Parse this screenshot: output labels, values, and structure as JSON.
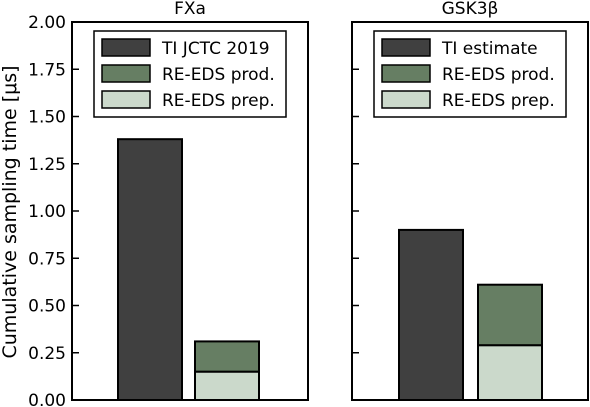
{
  "chart_data": [
    {
      "type": "bar",
      "stacked": true,
      "title": "FXa",
      "ylabel": "Cumulative sampling time [μs]",
      "ylim": [
        0,
        2.0
      ],
      "yticks": [
        "0.00",
        "0.25",
        "0.50",
        "0.75",
        "1.00",
        "1.25",
        "1.50",
        "1.75",
        "2.00"
      ],
      "legend_position": "upper-center",
      "bars": [
        {
          "segments": [
            {
              "series": "TI JCTC 2019",
              "value": 1.38
            }
          ]
        },
        {
          "segments": [
            {
              "series": "RE-EDS prep.",
              "value": 0.15
            },
            {
              "series": "RE-EDS prod.",
              "value": 0.16
            }
          ]
        }
      ],
      "legend": [
        {
          "label": "TI JCTC 2019",
          "color": "#404040"
        },
        {
          "label": "RE-EDS prod.",
          "color": "#667e63"
        },
        {
          "label": "RE-EDS prep.",
          "color": "#cbd9cb"
        }
      ]
    },
    {
      "type": "bar",
      "stacked": true,
      "title": "GSK3β",
      "ylim": [
        0,
        2.0
      ],
      "legend_position": "upper-center",
      "bars": [
        {
          "segments": [
            {
              "series": "TI estimate",
              "value": 0.9
            }
          ]
        },
        {
          "segments": [
            {
              "series": "RE-EDS prep.",
              "value": 0.29
            },
            {
              "series": "RE-EDS prod.",
              "value": 0.32
            }
          ]
        }
      ],
      "legend": [
        {
          "label": "TI estimate",
          "color": "#404040"
        },
        {
          "label": "RE-EDS prod.",
          "color": "#667e63"
        },
        {
          "label": "RE-EDS prep.",
          "color": "#cbd9cb"
        }
      ]
    }
  ],
  "colors": {
    "TI JCTC 2019": "#404040",
    "TI estimate": "#404040",
    "RE-EDS prod.": "#667e63",
    "RE-EDS prep.": "#cbd9cb"
  }
}
